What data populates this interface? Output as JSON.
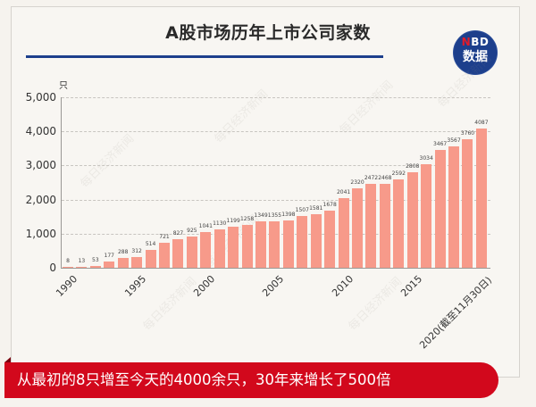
{
  "header": {
    "title": "A股市场历年上市公司家数",
    "logo_top_accent": "N",
    "logo_top_rest": "BD",
    "logo_bottom": "数据"
  },
  "watermark": "每日经济新闻",
  "colors": {
    "bar": "#f79a8a",
    "title_rule": "#1d3f8c",
    "banner": "#d2081c",
    "logo_bg": "#1d3f8c"
  },
  "banner": {
    "text": "从最初的8只增至今天的4000余只，30年来增长了500倍"
  },
  "chart_data": {
    "type": "bar",
    "title": "A股市场历年上市公司家数",
    "xlabel": "",
    "ylabel": "只",
    "ylim": [
      0,
      5000
    ],
    "yticks": [
      "0",
      "1,000",
      "2,000",
      "3,000",
      "4,000",
      "5,000"
    ],
    "xtick_labels": [
      "1990",
      "1995",
      "2000",
      "2005",
      "2010",
      "2015",
      "2020(截至11月30日)"
    ],
    "grid": "horizontal dashed",
    "categories": [
      "1990",
      "1991",
      "1992",
      "1993",
      "1994",
      "1995",
      "1996",
      "1997",
      "1998",
      "1999",
      "2000",
      "2001",
      "2002",
      "2003",
      "2004",
      "2005",
      "2006",
      "2007",
      "2008",
      "2009",
      "2010",
      "2011",
      "2012",
      "2013",
      "2014",
      "2015",
      "2016",
      "2017",
      "2018",
      "2019",
      "2020"
    ],
    "values": [
      8,
      13,
      53,
      177,
      288,
      312,
      514,
      721,
      827,
      925,
      1041,
      1130,
      1199,
      1258,
      1349,
      1355,
      1398,
      1507,
      1581,
      1678,
      2041,
      2320,
      2472,
      2468,
      2592,
      2808,
      3034,
      3467,
      3567,
      3760,
      4087
    ]
  }
}
